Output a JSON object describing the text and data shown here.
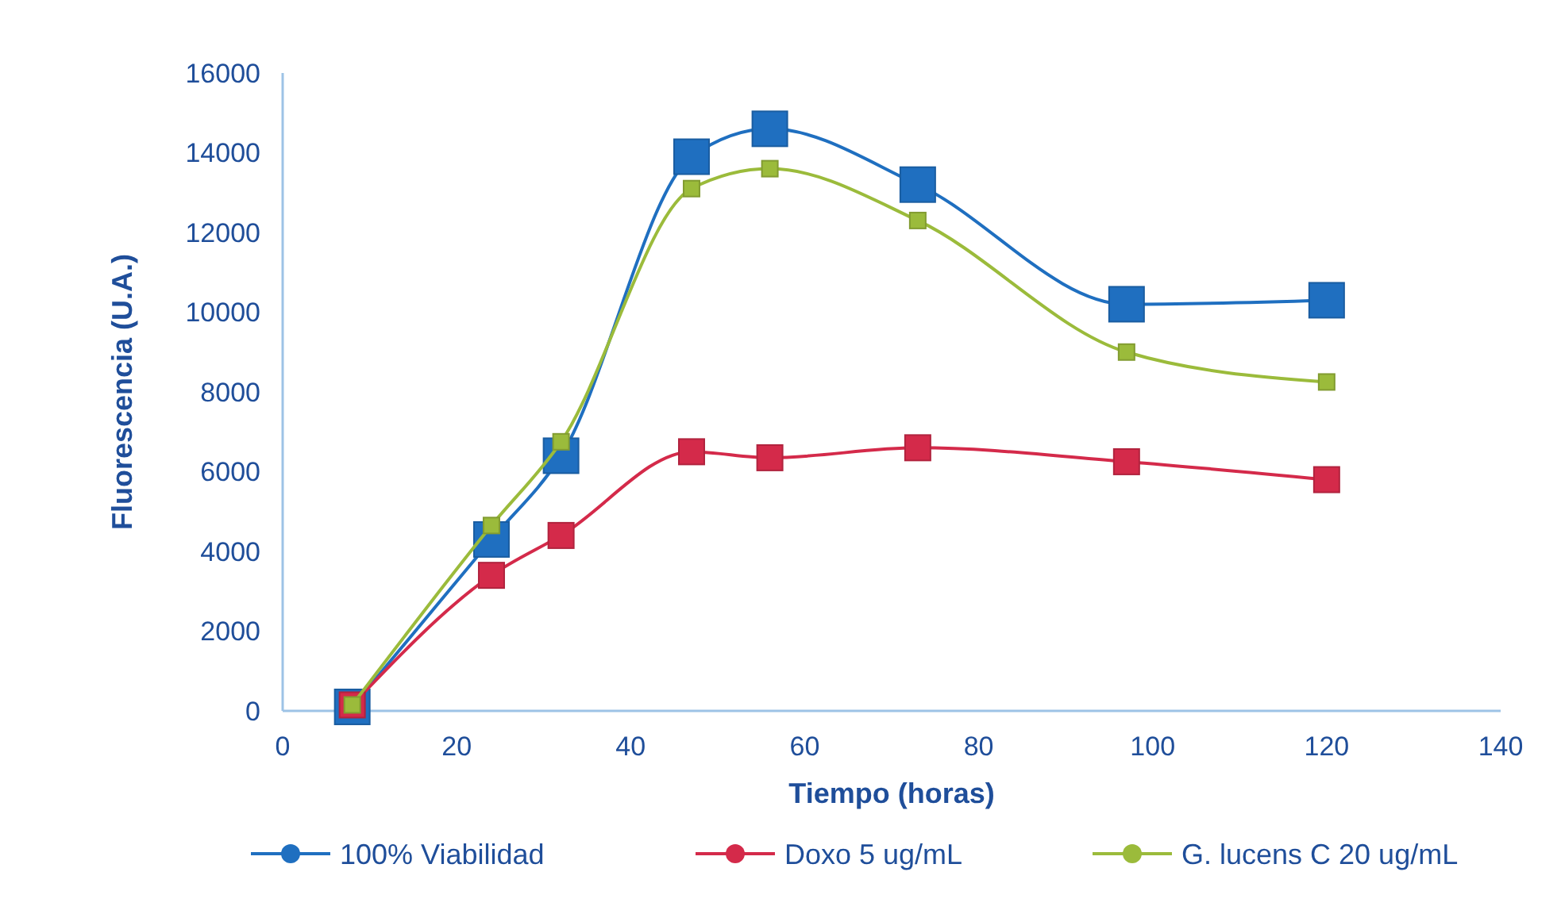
{
  "chart_data": {
    "type": "line",
    "xlabel": "Tiempo (horas)",
    "ylabel": "Fluorescencia (U.A.)",
    "x": [
      8,
      24,
      32,
      47,
      56,
      73,
      97,
      120
    ],
    "xlim": [
      0,
      140
    ],
    "xticks": [
      0,
      20,
      40,
      60,
      80,
      100,
      120,
      140
    ],
    "ylim": [
      0,
      16000
    ],
    "yticks": [
      0,
      2000,
      4000,
      6000,
      8000,
      10000,
      12000,
      14000,
      16000
    ],
    "grid": false,
    "legend": "bottom",
    "marker": "square",
    "line_style": "solid",
    "series": [
      {
        "name": "100% Viabilidad",
        "color": "#1f6fc0",
        "values": [
          100,
          4300,
          6400,
          13900,
          14600,
          13200,
          10200,
          10300
        ]
      },
      {
        "name": "Doxo 5 ug/mL",
        "color": "#d42a4a",
        "values": [
          150,
          3400,
          4400,
          6500,
          6350,
          6600,
          6250,
          5800
        ]
      },
      {
        "name": "G. lucens C 20 ug/mL",
        "color": "#9bbb3b",
        "values": [
          150,
          4650,
          6750,
          13100,
          13600,
          12300,
          9000,
          8250
        ]
      }
    ]
  }
}
